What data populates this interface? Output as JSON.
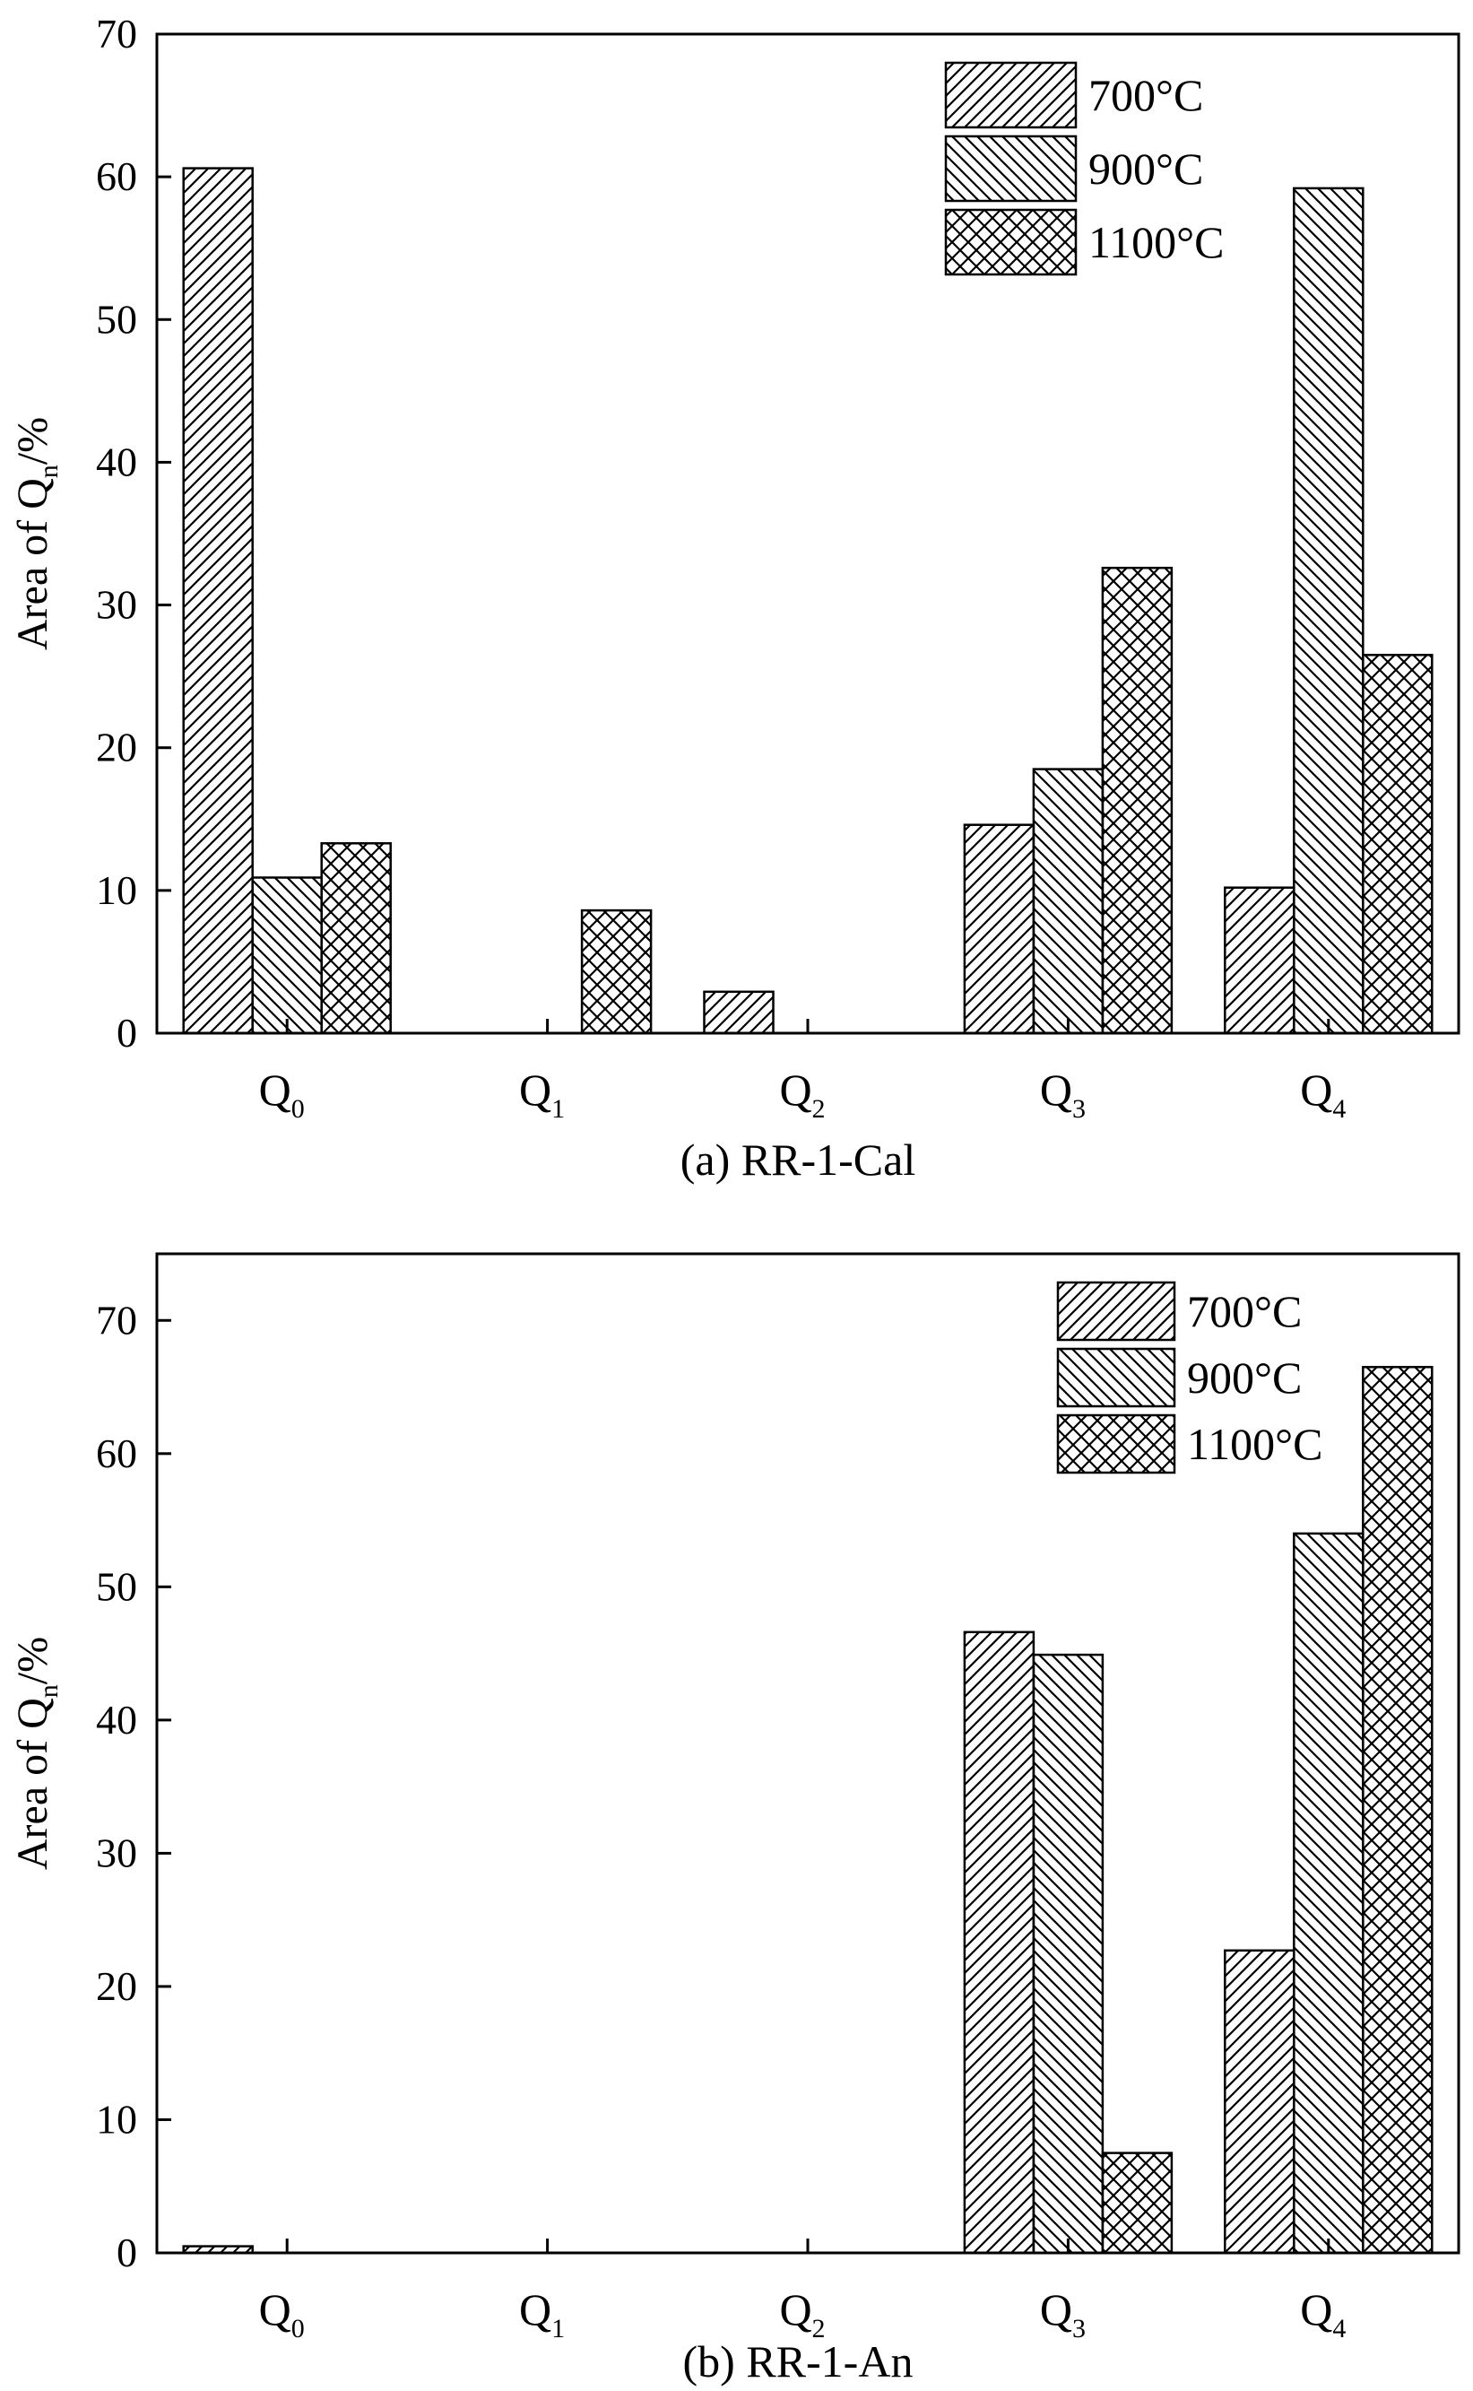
{
  "chart_data": [
    {
      "type": "bar",
      "caption": "(a) RR-1-Cal",
      "ylabel": {
        "main": "Area of Q",
        "sub": "n",
        "unit": "/%"
      },
      "categories": [
        {
          "main": "Q",
          "sub": "0"
        },
        {
          "main": "Q",
          "sub": "1"
        },
        {
          "main": "Q",
          "sub": "2"
        },
        {
          "main": "Q",
          "sub": "3"
        },
        {
          "main": "Q",
          "sub": "4"
        }
      ],
      "ylim": [
        0,
        70
      ],
      "yticks": [
        0,
        10,
        20,
        30,
        40,
        50,
        60,
        70
      ],
      "legend_position": "top-right",
      "series": [
        {
          "name": "700°C",
          "pattern": "diagonal-forward",
          "values": [
            60.6,
            0,
            2.9,
            14.6,
            10.2
          ]
        },
        {
          "name": "900°C",
          "pattern": "diagonal-backward",
          "values": [
            10.9,
            0,
            0,
            18.5,
            59.2
          ]
        },
        {
          "name": "1100°C",
          "pattern": "crosshatch",
          "values": [
            13.3,
            8.6,
            0,
            32.6,
            26.5
          ]
        }
      ]
    },
    {
      "type": "bar",
      "caption": "(b) RR-1-An",
      "ylabel": {
        "main": "Area of Q",
        "sub": "n",
        "unit": "/%"
      },
      "categories": [
        {
          "main": "Q",
          "sub": "0"
        },
        {
          "main": "Q",
          "sub": "1"
        },
        {
          "main": "Q",
          "sub": "2"
        },
        {
          "main": "Q",
          "sub": "3"
        },
        {
          "main": "Q",
          "sub": "4"
        }
      ],
      "ylim": [
        0,
        75
      ],
      "yticks": [
        0,
        10,
        20,
        30,
        40,
        50,
        60,
        70
      ],
      "legend_position": "top-right",
      "series": [
        {
          "name": "700°C",
          "pattern": "diagonal-forward",
          "values": [
            0.5,
            0,
            0,
            46.6,
            22.7
          ]
        },
        {
          "name": "900°C",
          "pattern": "diagonal-backward",
          "values": [
            0,
            0,
            0,
            44.9,
            54.0
          ]
        },
        {
          "name": "1100°C",
          "pattern": "crosshatch",
          "values": [
            0,
            0,
            0,
            7.5,
            66.5
          ]
        }
      ]
    }
  ]
}
